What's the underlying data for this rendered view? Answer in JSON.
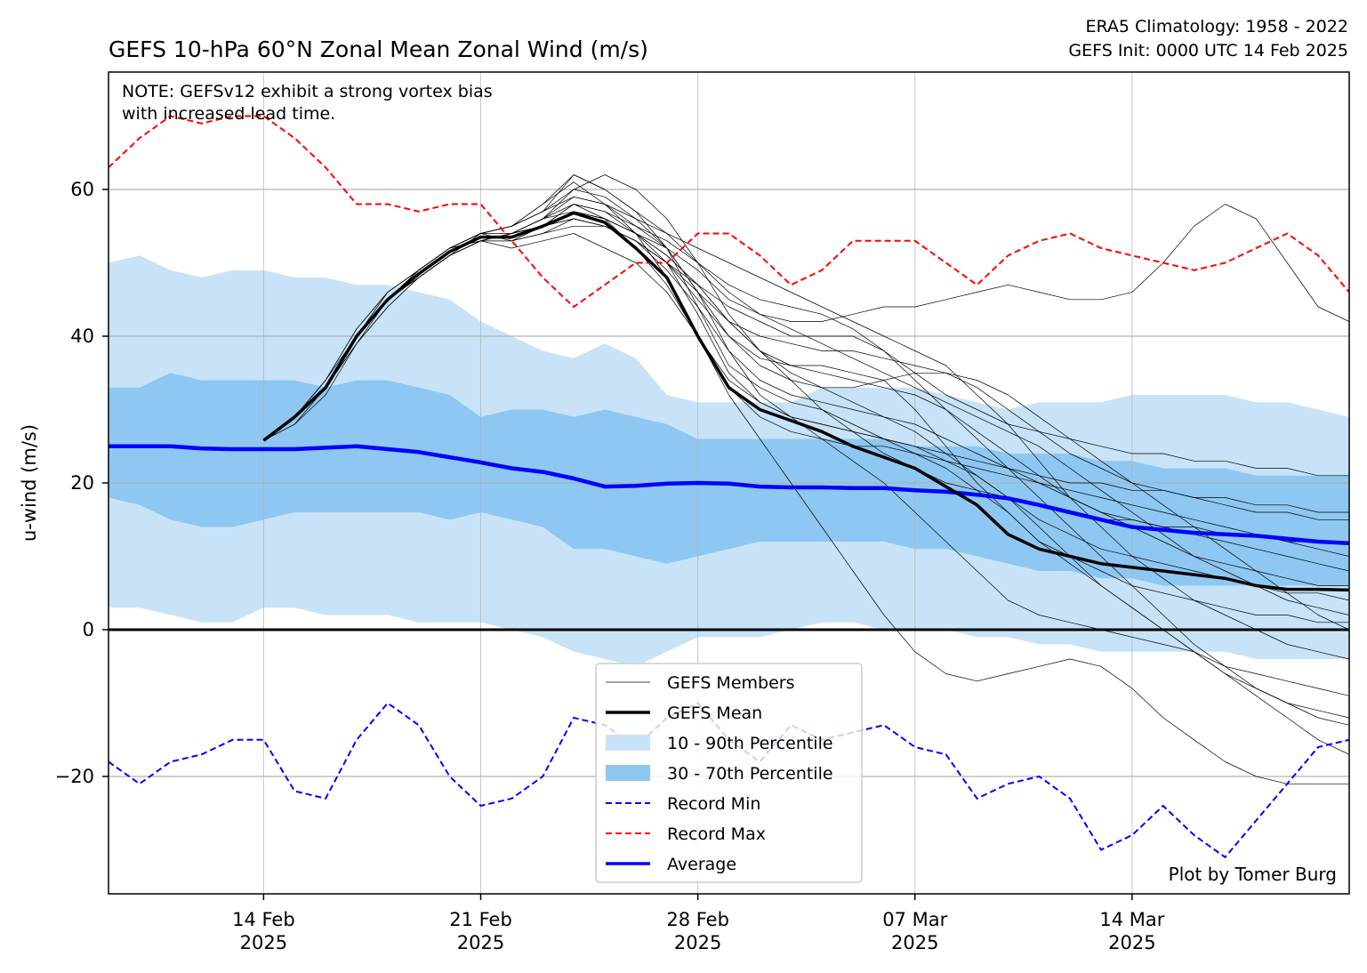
{
  "chart_data": {
    "type": "line",
    "title": "GEFS 10-hPa 60°N Zonal Mean Zonal Wind (m/s)",
    "subtitle_lines": [
      "ERA5 Climatology: 1958 - 2022",
      "GEFS Init: 0000 UTC 14 Feb 2025"
    ],
    "note_lines": [
      "NOTE: GEFSv12 exhibit a strong vortex bias",
      "with increased lead time."
    ],
    "credit": "Plot by Tomer Burg",
    "ylabel": "u-wind (m/s)",
    "xlabel": "",
    "x_domain": [
      "2025-02-09",
      "2025-03-21"
    ],
    "ylim": [
      -36,
      76
    ],
    "grid": true,
    "legend_position": "lower center",
    "x_ticks": [
      {
        "date": "2025-02-14",
        "line1": "14 Feb",
        "line2": "2025"
      },
      {
        "date": "2025-02-21",
        "line1": "21 Feb",
        "line2": "2025"
      },
      {
        "date": "2025-02-28",
        "line1": "28 Feb",
        "line2": "2025"
      },
      {
        "date": "2025-03-07",
        "line1": "07 Mar",
        "line2": "2025"
      },
      {
        "date": "2025-03-14",
        "line1": "14 Mar",
        "line2": "2025"
      }
    ],
    "y_ticks": [
      {
        "value": -20,
        "label": "−20"
      },
      {
        "value": 0,
        "label": "0"
      },
      {
        "value": 20,
        "label": "20"
      },
      {
        "value": 40,
        "label": "40"
      },
      {
        "value": 60,
        "label": "60"
      }
    ],
    "legend": [
      {
        "label": "GEFS Members",
        "style": "thin-line",
        "color": "#000000"
      },
      {
        "label": "GEFS Mean",
        "style": "thick-line",
        "color": "#000000"
      },
      {
        "label": "10 - 90th Percentile",
        "style": "patch",
        "color": "#c8e3f8"
      },
      {
        "label": "30 - 70th Percentile",
        "style": "patch",
        "color": "#8ec8f2"
      },
      {
        "label": "Record Min",
        "style": "dashed",
        "color": "#0000ff"
      },
      {
        "label": "Record Max",
        "style": "dashed",
        "color": "#ff0000"
      },
      {
        "label": "Average",
        "style": "thick-line",
        "color": "#0000ff"
      }
    ],
    "colors": {
      "p10_90": "#c8e3f8",
      "p30_70": "#8ec8f2",
      "average": "#0000ff",
      "record_min": "#0000ff",
      "record_max": "#ff0000",
      "gefs_mean": "#000000",
      "gefs_member": "#000000"
    },
    "climatology_dates": [
      "2025-02-09",
      "2025-02-10",
      "2025-02-11",
      "2025-02-12",
      "2025-02-13",
      "2025-02-14",
      "2025-02-15",
      "2025-02-16",
      "2025-02-17",
      "2025-02-18",
      "2025-02-19",
      "2025-02-20",
      "2025-02-21",
      "2025-02-22",
      "2025-02-23",
      "2025-02-24",
      "2025-02-25",
      "2025-02-26",
      "2025-02-27",
      "2025-02-28",
      "2025-03-01",
      "2025-03-02",
      "2025-03-03",
      "2025-03-04",
      "2025-03-05",
      "2025-03-06",
      "2025-03-07",
      "2025-03-08",
      "2025-03-09",
      "2025-03-10",
      "2025-03-11",
      "2025-03-12",
      "2025-03-13",
      "2025-03-14",
      "2025-03-15",
      "2025-03-16",
      "2025-03-17",
      "2025-03-18",
      "2025-03-19",
      "2025-03-20",
      "2025-03-21"
    ],
    "series": [
      {
        "name": "Record Max",
        "values": [
          63,
          67,
          70,
          69,
          70,
          70,
          67,
          63,
          58,
          58,
          57,
          58,
          58,
          53,
          48,
          44,
          47,
          50,
          50,
          54,
          54,
          51,
          47,
          49,
          53,
          53,
          53,
          50,
          47,
          51,
          53,
          54,
          52,
          51,
          50,
          49,
          50,
          52,
          54,
          51,
          46
        ]
      },
      {
        "name": "Record Min",
        "values": [
          -18,
          -21,
          -18,
          -17,
          -15,
          -15,
          -22,
          -23,
          -15,
          -10,
          -13,
          -20,
          -24,
          -23,
          -20,
          -12,
          -13,
          -16,
          -12,
          -10,
          -15,
          -18,
          -13,
          -15,
          -14,
          -13,
          -16,
          -17,
          -23,
          -21,
          -20,
          -23,
          -30,
          -28,
          -24,
          -28,
          -31,
          -26,
          -21,
          -16,
          -15
        ]
      },
      {
        "name": "Average",
        "values": [
          25,
          25,
          25,
          24.7,
          24.6,
          24.6,
          24.6,
          24.8,
          25,
          24.6,
          24.2,
          23.5,
          22.8,
          22,
          21.5,
          20.6,
          19.5,
          19.6,
          19.9,
          20,
          19.9,
          19.5,
          19.4,
          19.4,
          19.3,
          19.3,
          19,
          18.8,
          18.4,
          17.9,
          17,
          16,
          15,
          14,
          13.6,
          13.2,
          13,
          12.8,
          12.4,
          12,
          11.8
        ]
      },
      {
        "name": "10 - 90th Percentile",
        "lower": [
          3,
          3,
          2,
          1,
          1,
          3,
          3,
          2,
          2,
          2,
          1,
          1,
          1,
          0,
          -1,
          -3,
          -4,
          -5,
          -3,
          -1,
          -1,
          -1,
          0,
          1,
          1,
          0,
          0,
          0,
          -1,
          -1,
          -2,
          -2,
          -3,
          -3,
          -3,
          -3,
          -3,
          -4,
          -4,
          -4,
          -4
        ],
        "upper": [
          50,
          51,
          49,
          48,
          49,
          49,
          48,
          48,
          47,
          47,
          46,
          45,
          42,
          40,
          38,
          37,
          39,
          37,
          32,
          31,
          31,
          31,
          31,
          33,
          33,
          33,
          33,
          32,
          31,
          30,
          31,
          31,
          31,
          32,
          32,
          32,
          32,
          31,
          31,
          30,
          29
        ]
      },
      {
        "name": "30 - 70th Percentile",
        "lower": [
          18,
          17,
          15,
          14,
          14,
          15,
          16,
          16,
          16,
          16,
          16,
          15,
          16,
          15,
          14,
          11,
          11,
          10,
          9,
          10,
          11,
          12,
          12,
          12,
          12,
          12,
          11,
          11,
          10,
          9,
          8,
          8,
          7,
          7,
          6,
          6,
          6,
          6,
          6,
          6,
          6
        ]
      },
      {
        "name": "30 - 70th Percentile upper",
        "values": [
          33,
          33,
          35,
          34,
          34,
          34,
          34,
          33,
          34,
          34,
          33,
          32,
          29,
          30,
          30,
          29,
          30,
          29,
          28,
          26,
          26,
          26,
          26,
          26,
          26,
          26,
          25,
          25,
          25,
          24,
          24,
          24,
          23,
          23,
          22,
          22,
          22,
          21,
          21,
          21,
          21
        ]
      }
    ],
    "gefs_dates": [
      "2025-02-14",
      "2025-02-15",
      "2025-02-16",
      "2025-02-17",
      "2025-02-18",
      "2025-02-19",
      "2025-02-20",
      "2025-02-21",
      "2025-02-22",
      "2025-02-23",
      "2025-02-24",
      "2025-02-25",
      "2025-02-26",
      "2025-02-27",
      "2025-02-28",
      "2025-03-01",
      "2025-03-02",
      "2025-03-03",
      "2025-03-04",
      "2025-03-05",
      "2025-03-06",
      "2025-03-07",
      "2025-03-08",
      "2025-03-09",
      "2025-03-10",
      "2025-03-11",
      "2025-03-12",
      "2025-03-13",
      "2025-03-14",
      "2025-03-15",
      "2025-03-16",
      "2025-03-17",
      "2025-03-18",
      "2025-03-19",
      "2025-03-20",
      "2025-03-21"
    ],
    "gefs_mean": [
      25.8,
      29,
      33,
      40,
      45,
      48.5,
      51.5,
      53.5,
      53.5,
      55,
      56.8,
      55.5,
      52,
      48,
      40,
      33,
      30,
      28.5,
      27,
      25,
      23.5,
      22,
      19.5,
      17,
      13,
      11,
      10,
      9,
      8.5,
      8,
      7.5,
      7,
      6,
      5.5,
      5.5,
      5.4
    ],
    "gefs_members": [
      [
        25.8,
        29,
        33,
        40,
        45,
        49,
        52,
        54,
        55,
        57,
        59,
        58,
        55,
        52,
        46,
        38,
        32,
        29,
        26,
        23,
        20,
        16,
        12,
        8,
        4,
        2,
        1,
        0,
        -1,
        -2,
        -3,
        -5,
        -6,
        -7,
        -8,
        -9
      ],
      [
        25.8,
        29,
        33,
        39,
        44,
        48,
        51,
        53,
        54,
        56,
        58,
        57,
        54,
        50,
        43,
        35,
        31,
        29,
        28,
        27,
        26,
        25,
        23,
        21,
        18,
        15,
        13,
        11,
        10,
        9,
        8,
        7,
        6,
        5,
        5,
        4
      ],
      [
        25.8,
        29,
        34,
        41,
        46,
        49,
        52,
        54,
        55,
        57,
        62,
        60,
        57,
        52,
        44,
        36,
        33,
        31,
        30,
        28,
        26,
        24,
        22,
        19,
        16,
        12,
        9,
        6,
        3,
        0,
        -3,
        -6,
        -9,
        -12,
        -15,
        -17
      ],
      [
        25.8,
        28,
        32,
        39,
        44,
        48,
        51,
        53,
        52,
        53,
        54,
        52,
        50,
        46,
        40,
        33,
        29,
        27,
        26,
        25,
        25,
        24,
        23,
        22,
        21,
        20,
        19,
        18,
        17,
        16,
        15,
        14,
        13,
        12,
        11,
        10
      ],
      [
        25.8,
        29,
        33,
        40,
        45,
        48,
        51,
        53,
        54,
        55,
        57,
        56,
        54,
        51,
        47,
        42,
        38,
        34,
        30,
        27,
        24,
        22,
        20,
        19,
        18,
        17,
        16,
        15,
        15,
        14,
        14,
        13,
        13,
        12,
        12,
        12
      ],
      [
        25.8,
        29,
        33,
        40,
        45,
        49,
        52,
        54,
        53,
        55,
        56,
        55,
        53,
        50,
        45,
        40,
        37,
        36,
        36,
        35,
        34,
        30,
        25,
        20,
        16,
        12,
        10,
        8,
        6,
        5,
        4,
        3,
        2,
        2,
        1,
        1
      ],
      [
        25.8,
        29,
        34,
        40,
        46,
        49,
        52,
        53,
        53,
        55,
        58,
        56,
        52,
        47,
        40,
        32,
        26,
        20,
        14,
        8,
        2,
        -3,
        -6,
        -7,
        -6,
        -5,
        -4,
        -5,
        -8,
        -12,
        -15,
        -18,
        -20,
        -21,
        -21,
        -21
      ],
      [
        25.8,
        29,
        33,
        40,
        45,
        48,
        51,
        53,
        54,
        55,
        56,
        55,
        53,
        50,
        46,
        42,
        40,
        39,
        38,
        38,
        37,
        36,
        35,
        33,
        30,
        27,
        24,
        22,
        20,
        19,
        18,
        17,
        16,
        16,
        15,
        15
      ],
      [
        25.8,
        29,
        33,
        39,
        45,
        49,
        52,
        54,
        55,
        58,
        61,
        58,
        54,
        48,
        40,
        34,
        31,
        29,
        28,
        27,
        26,
        25,
        24,
        23,
        22,
        21,
        20,
        20,
        19,
        19,
        18,
        18,
        17,
        17,
        16,
        16
      ],
      [
        25.8,
        29,
        33,
        40,
        45,
        48,
        51,
        53,
        54,
        56,
        57,
        56,
        54,
        52,
        49,
        45,
        43,
        42,
        42,
        43,
        44,
        44,
        45,
        46,
        47,
        46,
        45,
        45,
        46,
        50,
        55,
        58,
        56,
        50,
        44,
        42
      ],
      [
        25.8,
        29,
        33,
        40,
        45,
        48,
        51,
        53,
        53,
        54,
        55,
        55,
        53,
        50,
        47,
        44,
        42,
        40,
        40,
        40,
        38,
        34,
        30,
        26,
        22,
        18,
        14,
        10,
        6,
        2,
        -2,
        -5,
        -8,
        -10,
        -12,
        -13
      ],
      [
        25.8,
        29,
        34,
        41,
        46,
        49,
        52,
        54,
        55,
        57,
        60,
        59,
        56,
        52,
        46,
        40,
        36,
        34,
        33,
        33,
        34,
        35,
        35,
        34,
        32,
        29,
        26,
        23,
        20,
        17,
        14,
        11,
        8,
        5,
        2,
        0
      ],
      [
        25.8,
        29,
        33,
        40,
        45,
        49,
        52,
        53,
        54,
        55,
        58,
        57,
        55,
        53,
        50,
        47,
        45,
        44,
        43,
        41,
        38,
        35,
        32,
        30,
        28,
        27,
        26,
        25,
        24,
        24,
        23,
        23,
        22,
        22,
        21,
        21
      ],
      [
        25.8,
        28,
        33,
        40,
        45,
        48,
        51,
        53,
        54,
        56,
        59,
        58,
        56,
        54,
        52,
        50,
        48,
        46,
        44,
        42,
        40,
        38,
        36,
        32,
        28,
        23,
        18,
        14,
        10,
        7,
        4,
        2,
        0,
        -2,
        -3,
        -4
      ],
      [
        25.8,
        29,
        33,
        40,
        45,
        48,
        51,
        54,
        55,
        58,
        62,
        60,
        57,
        54,
        50,
        46,
        43,
        41,
        39,
        37,
        35,
        33,
        31,
        29,
        27,
        25,
        22,
        19,
        16,
        13,
        10,
        8,
        6,
        4,
        3,
        2
      ],
      [
        25.8,
        29,
        33,
        40,
        45,
        49,
        52,
        54,
        54,
        55,
        57,
        56,
        54,
        51,
        47,
        42,
        38,
        36,
        35,
        34,
        33,
        32,
        30,
        27,
        24,
        21,
        18,
        16,
        14,
        12,
        10,
        9,
        8,
        7,
        6,
        6
      ],
      [
        25.8,
        29,
        33,
        40,
        45,
        48,
        51,
        53,
        54,
        56,
        60,
        62,
        60,
        56,
        50,
        43,
        38,
        35,
        33,
        31,
        29,
        27,
        24,
        21,
        18,
        14,
        10,
        6,
        3,
        0,
        -3,
        -6,
        -8,
        -10,
        -11,
        -12
      ],
      [
        25.8,
        29,
        33,
        40,
        45,
        49,
        52,
        53,
        53,
        54,
        56,
        55,
        53,
        49,
        44,
        38,
        34,
        32,
        31,
        30,
        29,
        28,
        26,
        24,
        22,
        20,
        18,
        16,
        15,
        14,
        13,
        12,
        11,
        10,
        9,
        8
      ]
    ]
  }
}
